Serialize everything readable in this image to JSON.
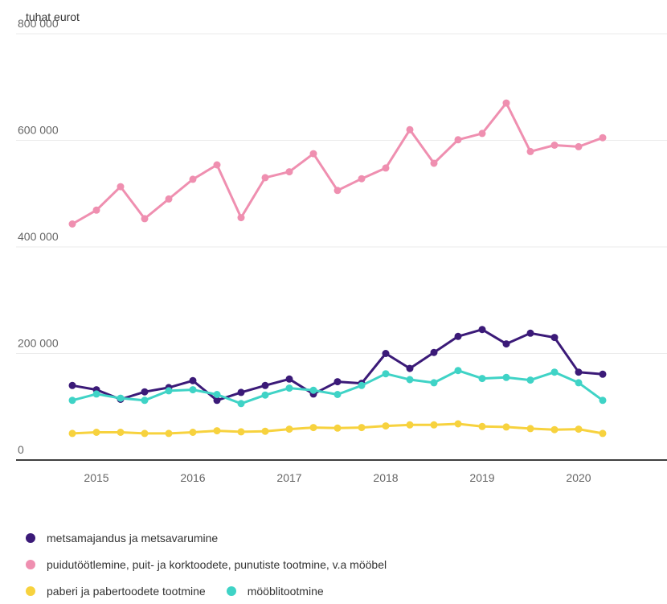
{
  "chart_data": {
    "type": "line",
    "unit_label": "tuhat eurot",
    "ylim": [
      0,
      800000
    ],
    "yticks": [
      0,
      200000,
      400000,
      600000,
      800000
    ],
    "ytick_labels": [
      "0",
      "200 000",
      "400 000",
      "600 000",
      "800 000"
    ],
    "xticks": [
      2015,
      2016,
      2017,
      2018,
      2019,
      2020
    ],
    "xtick_labels": [
      "2015",
      "2016",
      "2017",
      "2018",
      "2019",
      "2020"
    ],
    "xlim": [
      2014.5,
      2021.1
    ],
    "x": [
      2014.75,
      2015.0,
      2015.25,
      2015.5,
      2015.75,
      2016.0,
      2016.25,
      2016.5,
      2016.75,
      2017.0,
      2017.25,
      2017.5,
      2017.75,
      2018.0,
      2018.25,
      2018.5,
      2018.75,
      2019.0,
      2019.25,
      2019.5,
      2019.75,
      2020.0,
      2020.25
    ],
    "grid": true,
    "series": [
      {
        "name": "puidutöötlemine, puit- ja korktoodete, punutiste tootmine, v.a mööbel",
        "color": "#ef8fb0",
        "values": [
          443000,
          469000,
          513000,
          453000,
          490000,
          527000,
          554000,
          455000,
          530000,
          541000,
          575000,
          506000,
          528000,
          548000,
          620000,
          557000,
          601000,
          613000,
          670000,
          579000,
          591000,
          588000,
          605000
        ]
      },
      {
        "name": "metsamajandus ja metsavarumine",
        "color": "#3b1a78",
        "values": [
          140000,
          132000,
          114000,
          128000,
          136000,
          149000,
          112000,
          127000,
          140000,
          152000,
          124000,
          147000,
          144000,
          200000,
          172000,
          202000,
          232000,
          245000,
          218000,
          238000,
          230000,
          165000,
          161000
        ]
      },
      {
        "name": "mööblitootmine",
        "color": "#3fd3c6",
        "values": [
          112000,
          124000,
          116000,
          112000,
          130000,
          132000,
          123000,
          106000,
          122000,
          135000,
          131000,
          123000,
          140000,
          162000,
          151000,
          145000,
          168000,
          153000,
          155000,
          150000,
          165000,
          145000,
          112000
        ]
      },
      {
        "name": "paberi ja pabertoodete tootmine",
        "color": "#f7d23e",
        "values": [
          50000,
          52000,
          52000,
          50000,
          50000,
          52000,
          55000,
          53000,
          54000,
          58000,
          61000,
          60000,
          61000,
          64000,
          66000,
          66000,
          68000,
          63000,
          62000,
          59000,
          57000,
          58000,
          50000
        ]
      }
    ],
    "legend": {
      "placement": "bottom",
      "rows": [
        [
          {
            "label": "metsamajandus ja metsavarumine",
            "color": "#3b1a78"
          }
        ],
        [
          {
            "label": "puidutöötlemine, puit- ja korktoodete, punutiste tootmine, v.a mööbel",
            "color": "#ef8fb0"
          }
        ],
        [
          {
            "label": "paberi ja pabertoodete tootmine",
            "color": "#f7d23e"
          },
          {
            "label": "mööblitootmine",
            "color": "#3fd3c6"
          }
        ]
      ]
    }
  }
}
